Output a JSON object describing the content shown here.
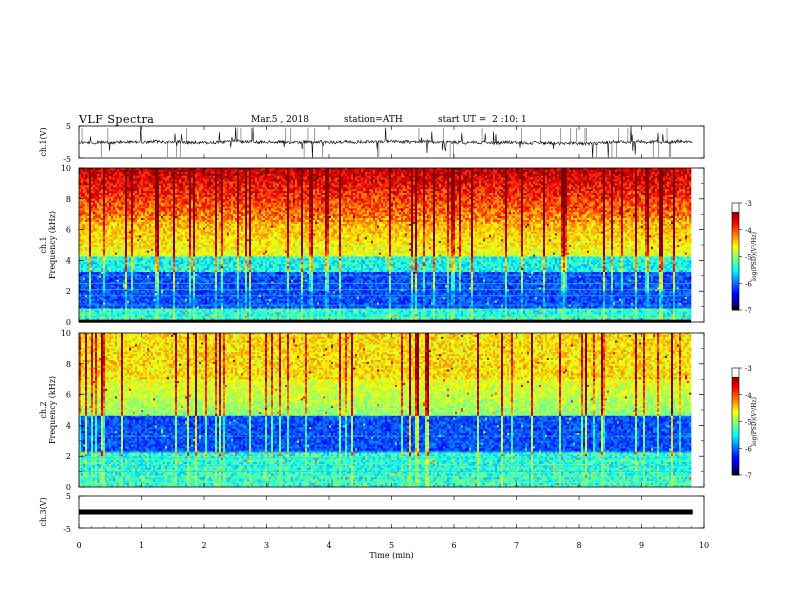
{
  "header": {
    "title": "VLF Spectra",
    "date": "Mar.5 , 2018",
    "station": "station=ATH",
    "start_ut": "start UT =  2 :10: 1"
  },
  "chart_data": [
    {
      "type": "line",
      "panel": "ch1-waveform",
      "ylabel": "ch.1(V)",
      "yticks": [
        "5",
        "-5"
      ],
      "ylim": [
        -5,
        5
      ],
      "xlim": [
        0,
        10
      ],
      "data_xlim": [
        0,
        9.82
      ],
      "color": "#000000",
      "description_level": 0
    },
    {
      "type": "heatmap",
      "panel": "ch1-spectrogram",
      "ylabel": "ch.1\nFrequency (kHz)",
      "ylabel_lines": [
        "ch.1",
        "Frequency (kHz)"
      ],
      "ylim": [
        0,
        10
      ],
      "yticks": [
        0,
        2,
        4,
        6,
        8,
        10
      ],
      "xlim": [
        0,
        10
      ],
      "colorbar": {
        "label": "log(PSD)(V²/Hz)",
        "range": [
          -7,
          -3
        ],
        "ticks": [
          "-3",
          "-4",
          "-5",
          "-6",
          "-7"
        ]
      }
    },
    {
      "type": "heatmap",
      "panel": "ch2-spectrogram",
      "ylabel": "ch.2\nFrequency (kHz)",
      "ylabel_lines": [
        "ch.2",
        "Frequency (kHz)"
      ],
      "ylim": [
        0,
        10
      ],
      "yticks": [
        0,
        2,
        4,
        6,
        8,
        10
      ],
      "xlim": [
        0,
        10
      ],
      "colorbar": {
        "label": "log(PSD)(V²/Hz)",
        "range": [
          -7,
          -3
        ],
        "ticks": [
          "-3",
          "-4",
          "-5",
          "-6",
          "-7"
        ]
      }
    },
    {
      "type": "line",
      "panel": "ch3-waveform",
      "ylabel": "ch.3(V)",
      "yticks": [
        "5",
        "-5"
      ],
      "ylim": [
        -5,
        5
      ],
      "xlim": [
        0,
        10
      ],
      "data_xlim": [
        0,
        9.82
      ],
      "color": "#000000",
      "level": 0
    }
  ],
  "xaxis": {
    "label": "Time  (min)",
    "ticks": [
      "0",
      "1",
      "2",
      "3",
      "4",
      "5",
      "6",
      "7",
      "8",
      "9",
      "10"
    ]
  }
}
